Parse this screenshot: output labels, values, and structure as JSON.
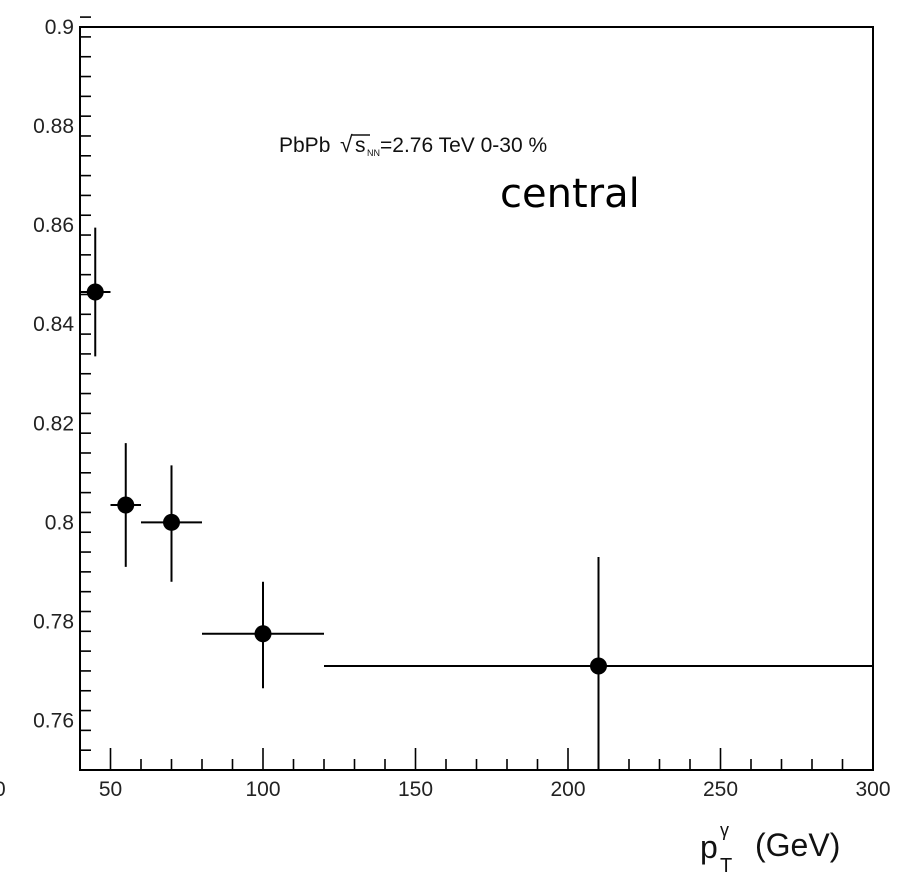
{
  "chart_data": {
    "type": "scatter",
    "title": "",
    "xlabel": "(GeV)",
    "xlabel_symbol": "p",
    "xlabel_sup": "γ",
    "xlabel_sub": "T",
    "ylabel": "",
    "xlim": [
      40,
      300
    ],
    "ylim": [
      0.75,
      0.9
    ],
    "x_ticks": [
      50,
      100,
      150,
      200,
      250,
      300
    ],
    "x_tick_labels": [
      "50",
      "100",
      "150",
      "200",
      "250",
      "300"
    ],
    "x_edge_label": "0",
    "y_ticks": [
      0.76,
      0.78,
      0.8,
      0.82,
      0.84,
      0.86,
      0.88,
      0.9
    ],
    "y_tick_labels": [
      "0.76",
      "0.78",
      "0.8",
      "0.82",
      "0.84",
      "0.86",
      "0.88",
      "0.9"
    ],
    "grid": false,
    "marker_color": "#000000",
    "series": [
      {
        "points": [
          {
            "x": 45,
            "y": 0.8465,
            "xerr": [
              40,
              50
            ],
            "yerr": [
              0.8335,
              0.8595
            ]
          },
          {
            "x": 55,
            "y": 0.8035,
            "xerr": [
              50,
              60
            ],
            "yerr": [
              0.791,
              0.816
            ]
          },
          {
            "x": 70,
            "y": 0.8,
            "xerr": [
              60,
              80
            ],
            "yerr": [
              0.788,
              0.8115
            ]
          },
          {
            "x": 100,
            "y": 0.7775,
            "xerr": [
              80,
              120
            ],
            "yerr": [
              0.7665,
              0.788
            ]
          },
          {
            "x": 210,
            "y": 0.771,
            "xerr": [
              120,
              300
            ],
            "yerr": [
              0.75,
              0.793
            ]
          }
        ]
      }
    ],
    "annotations": {
      "system": "PbPb",
      "energy_label": "=2.76 TeV 0-30 %",
      "sqrt_symbol": "√",
      "s_letter": "s",
      "s_subscript": "NN",
      "centrality_word": "central"
    }
  }
}
